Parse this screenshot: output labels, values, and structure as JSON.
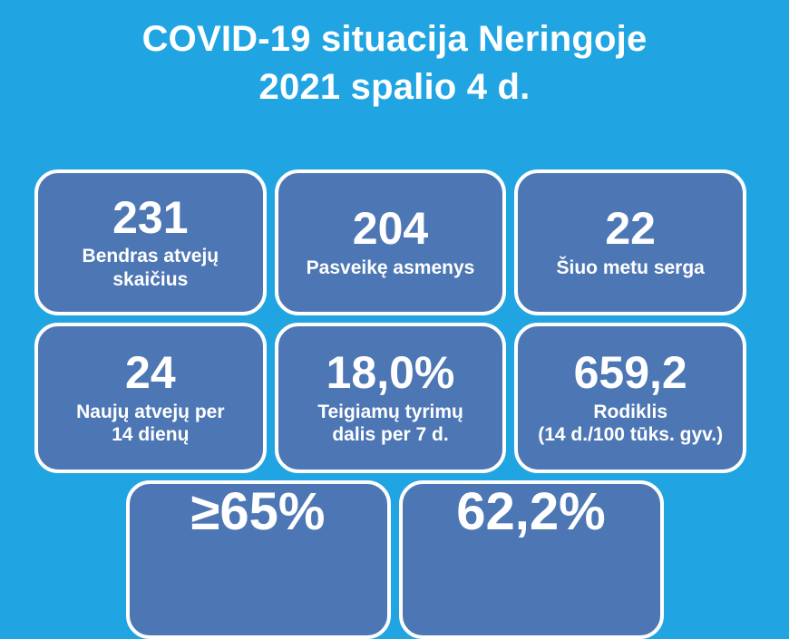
{
  "title": "COVID-19 situacija Neringoje\n2021 spalio 4 d.",
  "colors": {
    "background": "#21a5e2",
    "card": "#4d77b4",
    "card_border": "#ffffff",
    "text": "#ffffff"
  },
  "stat_cards": [
    {
      "value": "231",
      "label": "Bendras atvejų\nskaičius"
    },
    {
      "value": "204",
      "label": "Pasveikę asmenys"
    },
    {
      "value": "22",
      "label": "Šiuo metu serga"
    },
    {
      "value": "24",
      "label": "Naujų atvejų per\n14 dienų"
    },
    {
      "value": "18,0%",
      "label": "Teigiamų tyrimų\ndalis per 7 d."
    },
    {
      "value": "659,2",
      "label": "Rodiklis\n(14 d./100 tūks. gyv.)"
    }
  ],
  "bottom_cards": [
    {
      "value": "≥65%"
    },
    {
      "value": "62,2%"
    }
  ]
}
